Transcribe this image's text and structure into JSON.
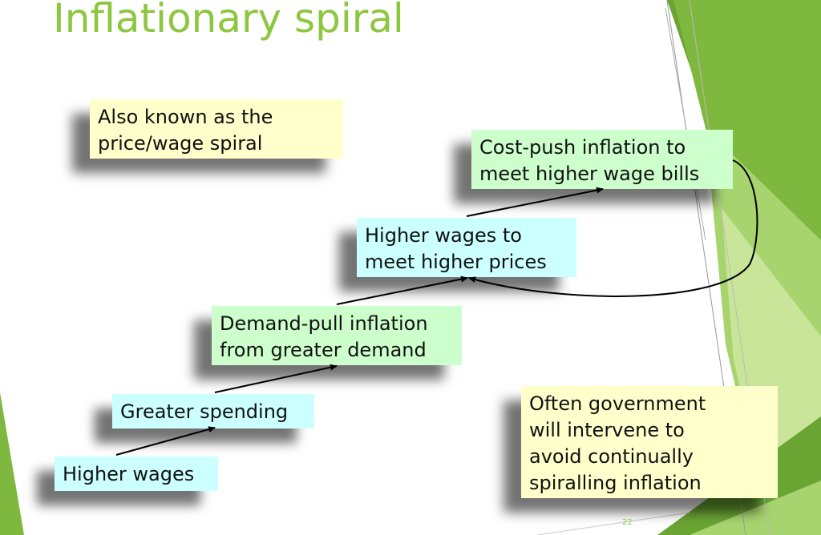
{
  "slide": {
    "title": "Inflationary spiral",
    "page_number": "22"
  },
  "boxes": {
    "also_known": [
      "Also known as the",
      "price/wage spiral"
    ],
    "cost_push": [
      "Cost-push inflation to",
      "meet higher wage bills"
    ],
    "higher_wages_to": [
      "Higher wages to",
      "meet higher prices"
    ],
    "demand_pull": [
      "Demand-pull inflation",
      "from greater demand"
    ],
    "greater_spending": [
      "Greater spending"
    ],
    "higher_wages": [
      "Higher wages"
    ],
    "government": [
      "Often government",
      "will intervene to",
      "avoid continually",
      "spiralling inflation"
    ]
  },
  "colors": {
    "title": "#8dc63f",
    "yellow_box": "#ffffcc",
    "blue_box": "#ccffff",
    "green_box": "#ccffcc",
    "accent_green_dark": "#5a9a2a",
    "accent_green_light": "#a8d46f"
  }
}
